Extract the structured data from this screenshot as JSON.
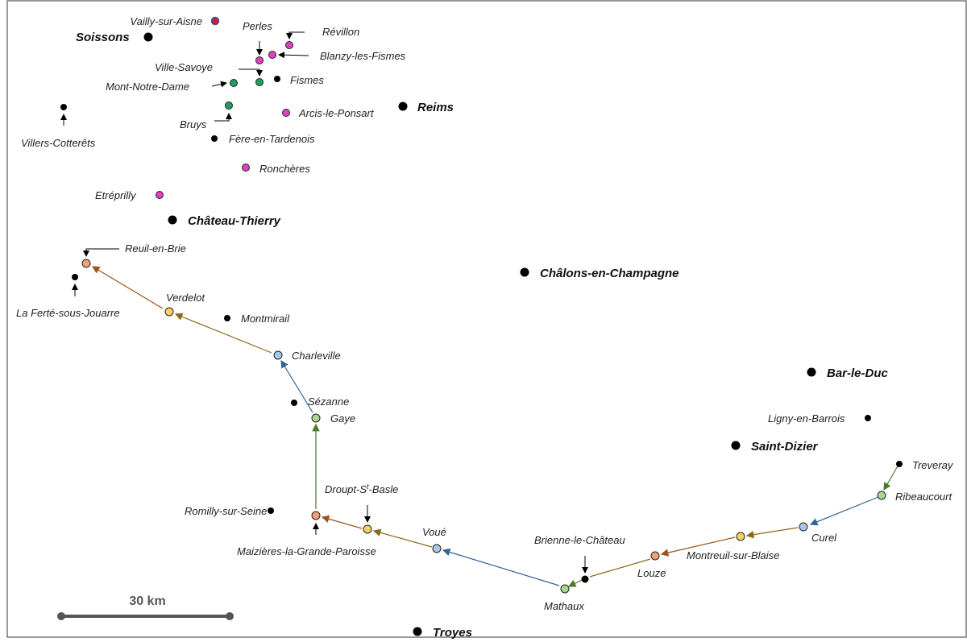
{
  "palette": {
    "pink": "#e040c0",
    "green": "#1ea060",
    "orange": "#f0a07a",
    "yellow": "#f8d060",
    "lightblue": "#a8c8e8",
    "lightgreen": "#a8d890",
    "black": "#000000",
    "route_blue": "#2e6496",
    "route_green": "#4a7a2a",
    "route_olive": "#8a6a1a",
    "route_brown": "#a0521a"
  },
  "cities": [
    {
      "name": "Soissons"
    },
    {
      "name": "Reims"
    },
    {
      "name": "Château-Thierry"
    },
    {
      "name": "Châlons-en-Champagne"
    },
    {
      "name": "Bar-le-Duc"
    },
    {
      "name": "Saint-Dizier"
    },
    {
      "name": "Troyes"
    }
  ],
  "places": {
    "vailly": "Vailly-sur-Aisne",
    "perles": "Perles",
    "revillon": "Révillon",
    "blanzy": "Blanzy-les-Fismes",
    "villesavoye": "Ville-Savoye",
    "montnotredame": "Mont-Notre-Dame",
    "fismes": "Fismes",
    "bruys": "Bruys",
    "arcis": "Arcis-le-Ponsart",
    "villers": "Villers-Cotterêts",
    "fere": "Fère-en-Tardenois",
    "ronch": "Ronchères",
    "etrep": "Etréprilly",
    "reuil": "Reuil-en-Brie",
    "laferte": "La Ferté-sous-Jouarre",
    "verdelot": "Verdelot",
    "montmirail": "Montmirail",
    "charleville": "Charleville",
    "sezanne": "Sézanne",
    "gaye": "Gaye",
    "droupt": "Droupt-S",
    "droupt_sup": "t",
    "droupt_end": "-Basle",
    "romilly": "Romilly-sur-Seine",
    "maizieres": "Maizières-la-Grande-Paroisse",
    "voue": "Voué",
    "brienne": "Brienne-le-Château",
    "mathaux": "Mathaux",
    "louze": "Louze",
    "montreuil": "Montreuil-sur-Blaise",
    "curel": "Curel",
    "ribeaucourt": "Ribeaucourt",
    "treveray": "Treveray",
    "ligny": "Ligny-en-Barrois"
  },
  "scale": {
    "label": "30 km"
  }
}
